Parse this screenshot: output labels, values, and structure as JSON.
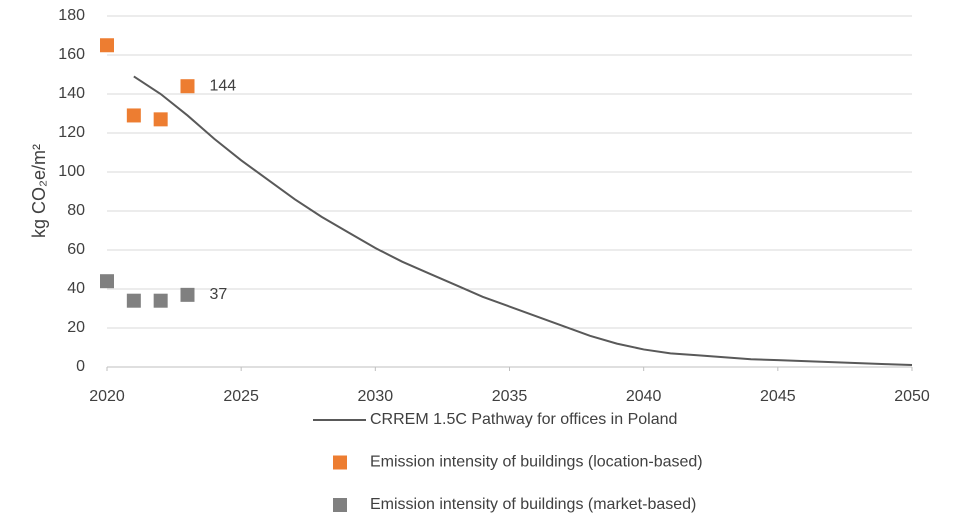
{
  "chart_data": {
    "type": "combo",
    "y_label": "kg CO₂e/m²",
    "xlim": [
      2020,
      2050
    ],
    "xticks": [
      2020,
      2025,
      2030,
      2035,
      2040,
      2045,
      2050
    ],
    "ylim": [
      0,
      180
    ],
    "yticks": [
      0,
      20,
      40,
      60,
      80,
      100,
      120,
      140,
      160,
      180
    ],
    "grid": true,
    "legend": "bottom",
    "series": [
      {
        "name": "CRREM 1.5C Pathway for offices in Poland",
        "type": "line",
        "color": "#595959",
        "x": [
          2021,
          2022,
          2023,
          2024,
          2025,
          2026,
          2027,
          2028,
          2029,
          2030,
          2031,
          2032,
          2033,
          2034,
          2035,
          2036,
          2037,
          2038,
          2039,
          2040,
          2041,
          2042,
          2043,
          2044,
          2045,
          2046,
          2047,
          2048,
          2049,
          2050
        ],
        "values": [
          149,
          140,
          129,
          117,
          106,
          96,
          86,
          77,
          69,
          61,
          54,
          48,
          42,
          36,
          31,
          26,
          21,
          16,
          12,
          9,
          7,
          6,
          5,
          4,
          3.5,
          3,
          2.5,
          2,
          1.5,
          1
        ]
      },
      {
        "name": "Emission intensity of buildings (location-based)",
        "type": "scatter",
        "color": "#ed7d31",
        "x": [
          2020,
          2021,
          2022,
          2023
        ],
        "values": [
          165,
          129,
          127,
          144
        ],
        "data_labels": "last"
      },
      {
        "name": "Emission intensity of buildings (market-based)",
        "type": "scatter",
        "color": "#808080",
        "x": [
          2020,
          2021,
          2022,
          2023
        ],
        "values": [
          44,
          34,
          34,
          37
        ],
        "data_labels": "last"
      }
    ]
  }
}
